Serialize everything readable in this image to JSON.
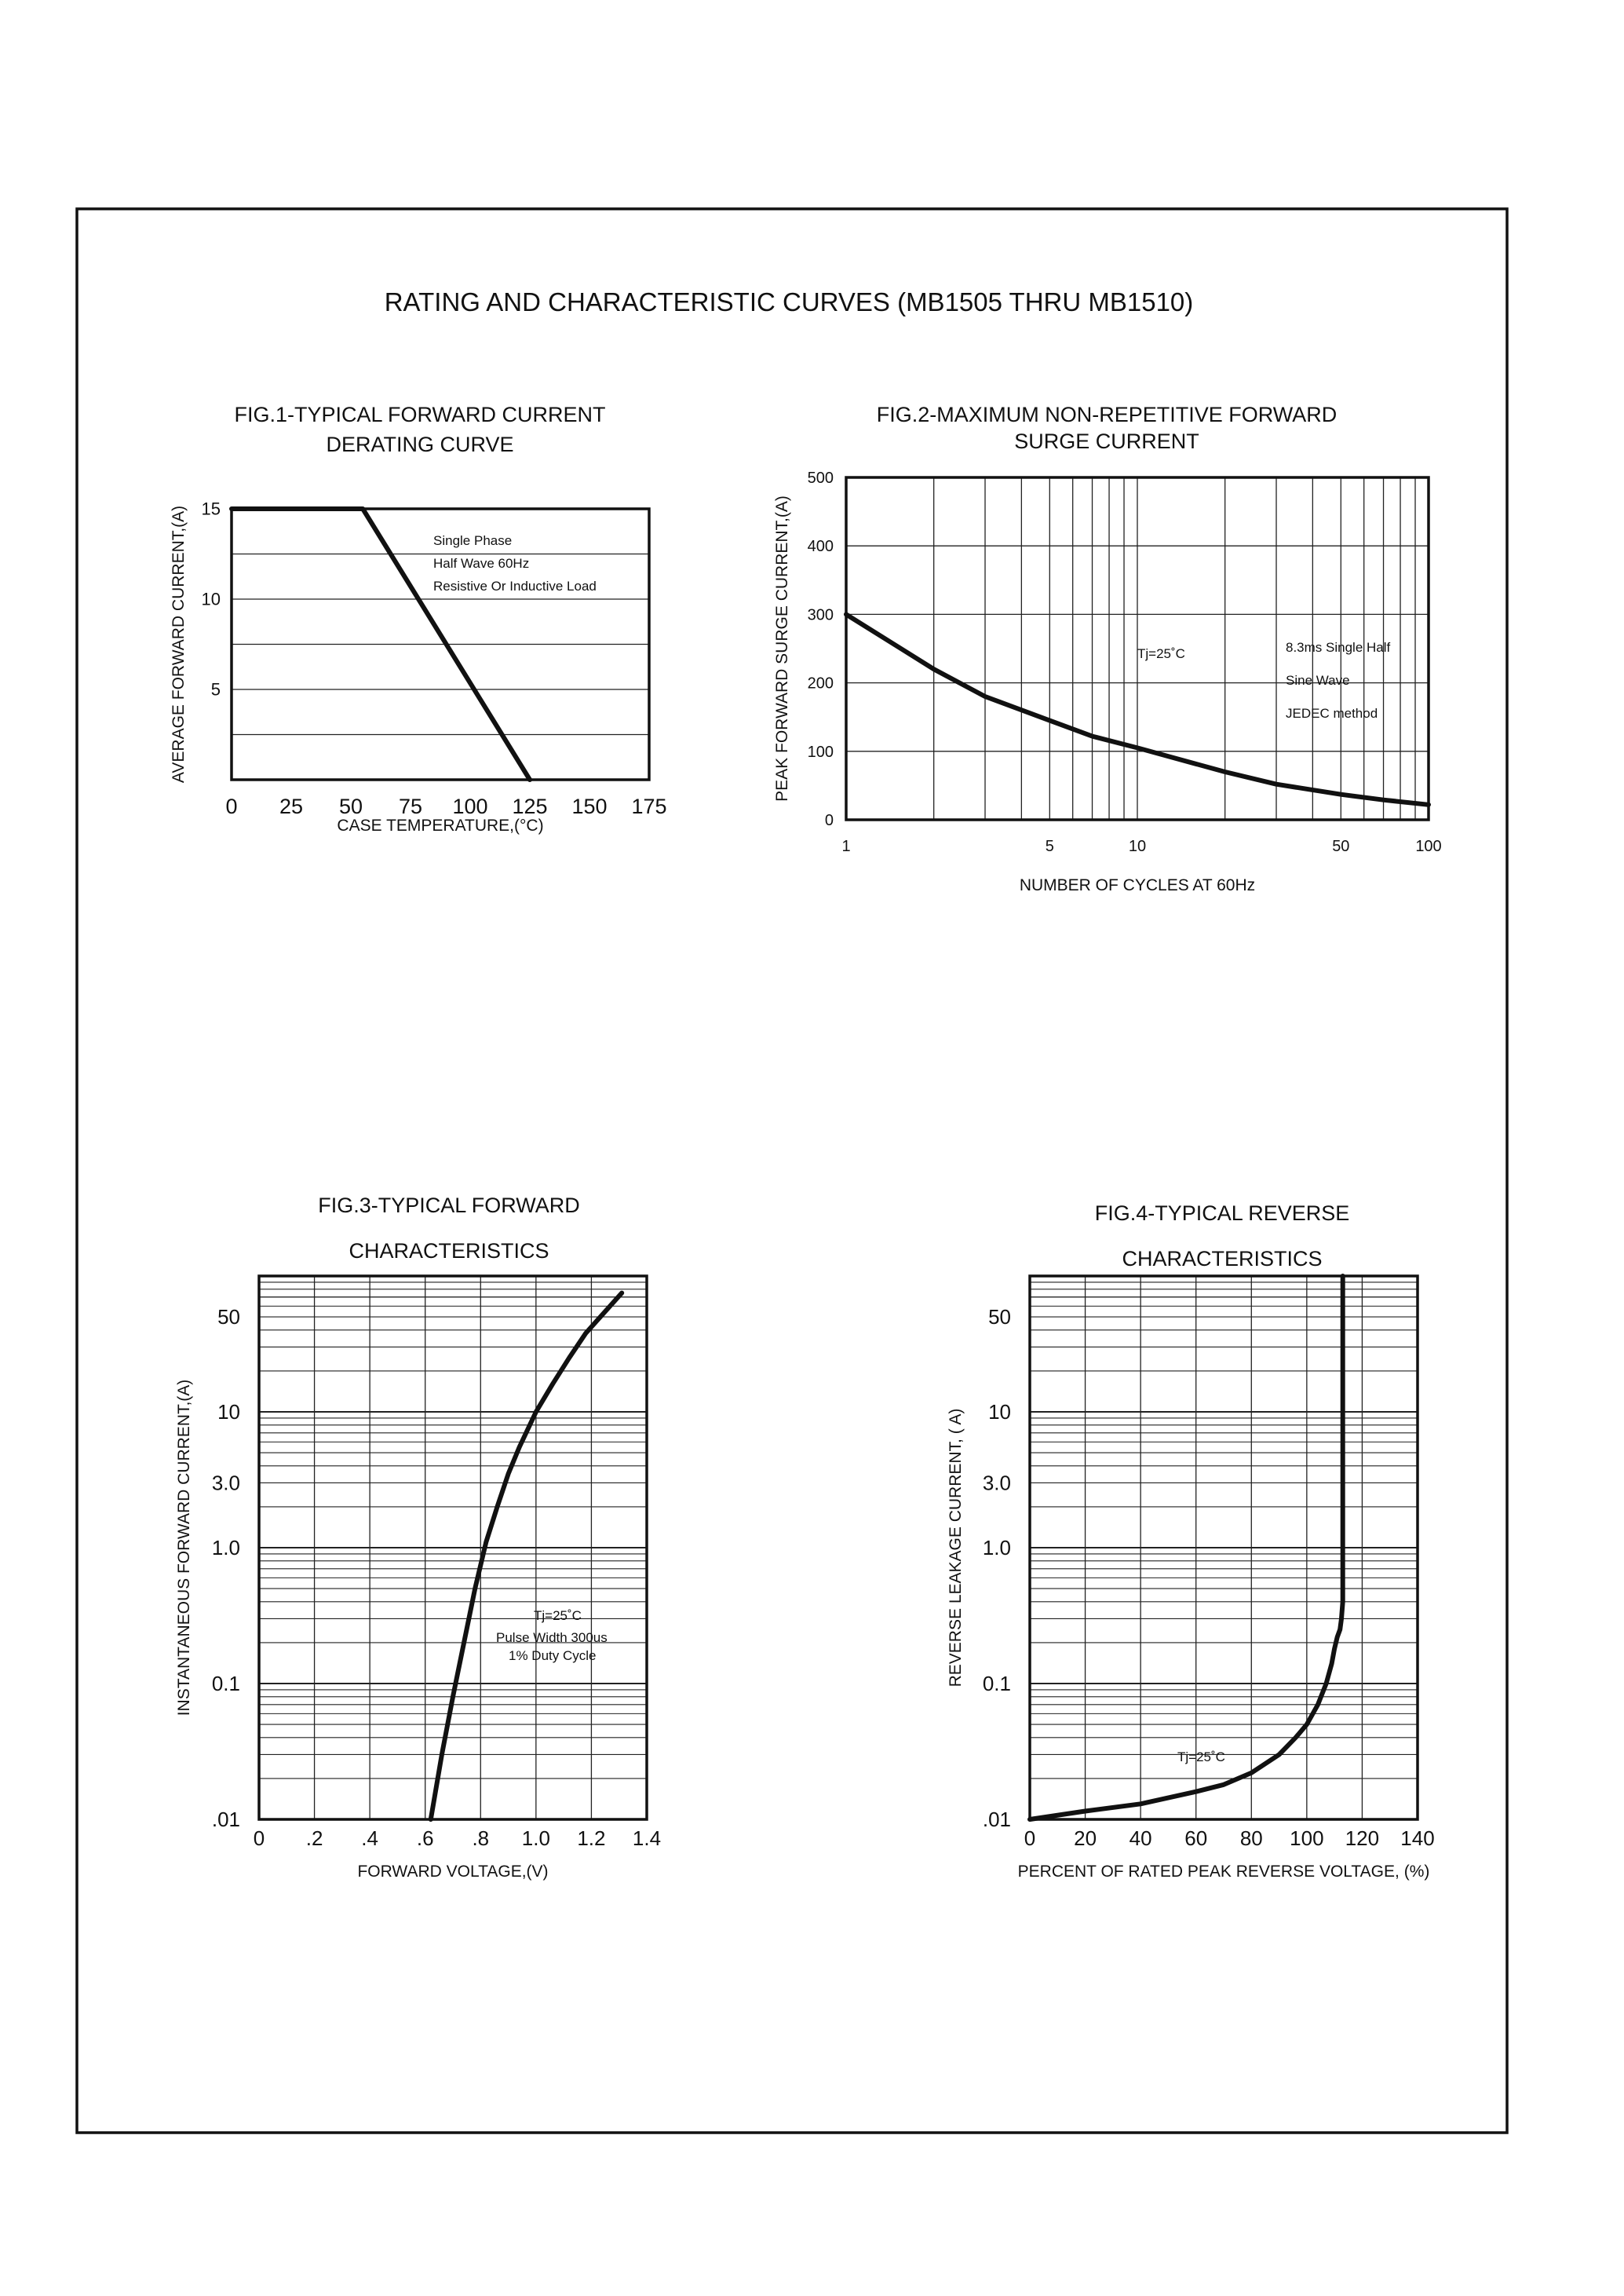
{
  "page": {
    "title": "RATING AND CHARACTERISTIC CURVES (MB1505 THRU MB1510)"
  },
  "chart_data": [
    {
      "id": "fig1",
      "type": "line",
      "title_lines": [
        "FIG.1-TYPICAL FORWARD CURRENT",
        "DERATING CURVE"
      ],
      "xlabel": "CASE TEMPERATURE,(°C)",
      "ylabel": "AVERAGE FORWARD CURRENT,(A)",
      "xlim": [
        0,
        175
      ],
      "ylim": [
        0,
        15
      ],
      "xticks": [
        0,
        25,
        50,
        75,
        100,
        125,
        150,
        175
      ],
      "xtick_labels": [
        "0",
        "25",
        "50",
        "75",
        "100",
        "125",
        "150",
        "175"
      ],
      "yticks": [
        5,
        10,
        15
      ],
      "ytick_labels": [
        "5",
        "10",
        "15"
      ],
      "grid_y": [
        2.5,
        5,
        7.5,
        10,
        12.5,
        15
      ],
      "series": [
        {
          "x": [
            0,
            55,
            125
          ],
          "y": [
            15,
            15,
            0
          ]
        }
      ],
      "annotations": [
        "Single Phase",
        "Half Wave 60Hz",
        "Resistive Or Inductive Load"
      ]
    },
    {
      "id": "fig2",
      "type": "line",
      "title_lines": [
        "FIG.2-MAXIMUM NON-REPETITIVE FORWARD",
        "SURGE CURRENT"
      ],
      "xlabel": "NUMBER OF CYCLES AT 60Hz",
      "ylabel": "PEAK FORWARD SURGE CURRENT,(A)",
      "xscale": "log",
      "xlim": [
        1,
        100
      ],
      "ylim": [
        0,
        500
      ],
      "xticks": [
        1,
        5,
        10,
        50,
        100
      ],
      "xtick_labels": [
        "1",
        "5",
        "10",
        "50",
        "100"
      ],
      "yticks": [
        0,
        100,
        200,
        300,
        400,
        500
      ],
      "ytick_labels": [
        "0",
        "100",
        "200",
        "300",
        "400",
        "500"
      ],
      "series": [
        {
          "x": [
            1,
            2,
            3,
            5,
            7,
            10,
            20,
            30,
            50,
            70,
            100
          ],
          "y": [
            300,
            220,
            180,
            145,
            122,
            105,
            70,
            52,
            37,
            29,
            22
          ]
        }
      ],
      "annotations": [
        "Tj=25˚C",
        "8.3ms Single Half",
        "Sine Wave",
        "JEDEC method"
      ]
    },
    {
      "id": "fig3",
      "type": "line",
      "title_lines": [
        "FIG.3-TYPICAL FORWARD",
        "CHARACTERISTICS"
      ],
      "xlabel": "FORWARD VOLTAGE,(V)",
      "ylabel": "INSTANTANEOUS FORWARD CURRENT,(A)",
      "yscale": "log",
      "xlim": [
        0,
        1.4
      ],
      "ylim": [
        0.01,
        100
      ],
      "xticks": [
        0,
        0.2,
        0.4,
        0.6,
        0.8,
        1.0,
        1.2,
        1.4
      ],
      "xtick_labels": [
        "0",
        ".2",
        ".4",
        ".6",
        ".8",
        "1.0",
        "1.2",
        "1.4"
      ],
      "yticks": [
        0.01,
        0.1,
        1,
        3,
        10,
        50
      ],
      "ytick_labels": [
        ".01",
        "0.1",
        "1.0",
        "3.0",
        "10",
        "50"
      ],
      "series": [
        {
          "x": [
            0.62,
            0.66,
            0.7,
            0.74,
            0.78,
            0.82,
            0.86,
            0.9,
            0.94,
            1.0,
            1.06,
            1.12,
            1.18,
            1.24,
            1.31
          ],
          "y": [
            0.01,
            0.03,
            0.08,
            0.2,
            0.5,
            1.1,
            2.0,
            3.5,
            5.5,
            10,
            16,
            25,
            38,
            52,
            75
          ]
        }
      ],
      "annotations": [
        "Tj=25˚C",
        "Pulse Width 300us",
        "1% Duty Cycle"
      ]
    },
    {
      "id": "fig4",
      "type": "line",
      "title_lines": [
        "FIG.4-TYPICAL REVERSE",
        "CHARACTERISTICS"
      ],
      "xlabel": "PERCENT OF RATED PEAK REVERSE VOLTAGE, (%)",
      "ylabel": "REVERSE LEAKAGE CURRENT, (  A)",
      "yscale": "log",
      "xlim": [
        0,
        140
      ],
      "ylim": [
        0.01,
        100
      ],
      "xticks": [
        0,
        20,
        40,
        60,
        80,
        100,
        120,
        140
      ],
      "xtick_labels": [
        "0",
        "20",
        "40",
        "60",
        "80",
        "100",
        "120",
        "140"
      ],
      "yticks": [
        0.01,
        0.1,
        1,
        3,
        10,
        50
      ],
      "ytick_labels": [
        ".01",
        "0.1",
        "1.0",
        "3.0",
        "10",
        "50"
      ],
      "series": [
        {
          "x": [
            0,
            20,
            40,
            60,
            70,
            80,
            90,
            96,
            100,
            104,
            107,
            109,
            110,
            111,
            112,
            112.5,
            113,
            113,
            113
          ],
          "y": [
            0.01,
            0.0115,
            0.013,
            0.016,
            0.018,
            0.022,
            0.03,
            0.04,
            0.05,
            0.07,
            0.1,
            0.14,
            0.18,
            0.22,
            0.25,
            0.3,
            0.4,
            10,
            100
          ]
        }
      ],
      "annotations": [
        "Tj=25˚C"
      ]
    }
  ]
}
